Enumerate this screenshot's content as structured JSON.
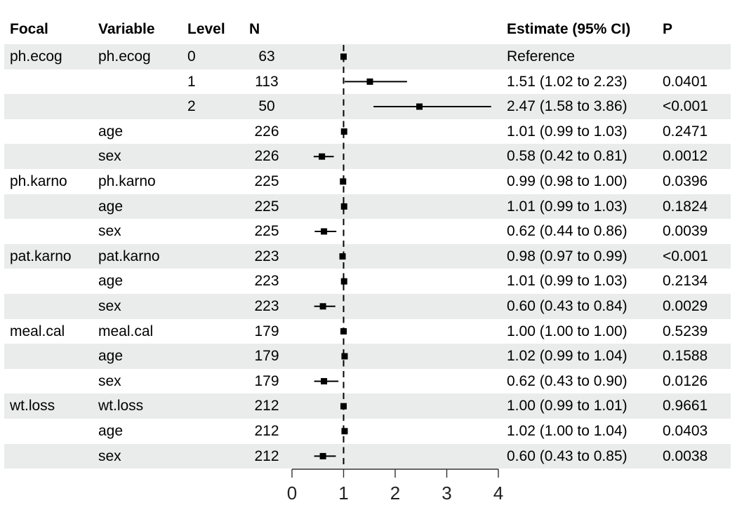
{
  "header": {
    "focal": "Focal",
    "variable": "Variable",
    "level": "Level",
    "n": "N",
    "estimate": "Estimate (95% CI)",
    "p": "P"
  },
  "colors": {
    "stripe": "#E9ECEA",
    "marker": "#000000",
    "axis": "#333333",
    "reference_line": "#000000"
  },
  "chart_data": {
    "type": "forest",
    "x_axis": {
      "ticks": [
        "0",
        "1",
        "2",
        "3",
        "4"
      ],
      "tick_values": [
        0,
        1,
        2,
        3,
        4
      ],
      "range": [
        0,
        4
      ]
    },
    "reference_line_x": 1,
    "grid": false,
    "legend": "none",
    "rows": [
      {
        "focal": "ph.ecog",
        "variable": "ph.ecog",
        "level": "0",
        "n": "63",
        "estimate": 1.0,
        "ci_low": null,
        "ci_high": null,
        "estimate_label": "Reference",
        "p": ""
      },
      {
        "focal": "",
        "variable": "",
        "level": "1",
        "n": "113",
        "estimate": 1.51,
        "ci_low": 1.02,
        "ci_high": 2.23,
        "estimate_label": "1.51 (1.02 to 2.23)",
        "p": "0.0401"
      },
      {
        "focal": "",
        "variable": "",
        "level": "2",
        "n": "50",
        "estimate": 2.47,
        "ci_low": 1.58,
        "ci_high": 3.86,
        "estimate_label": "2.47 (1.58 to 3.86)",
        "p": "<0.001"
      },
      {
        "focal": "",
        "variable": "age",
        "level": "",
        "n": "226",
        "estimate": 1.01,
        "ci_low": 0.99,
        "ci_high": 1.03,
        "estimate_label": "1.01 (0.99 to 1.03)",
        "p": "0.2471"
      },
      {
        "focal": "",
        "variable": "sex",
        "level": "",
        "n": "226",
        "estimate": 0.58,
        "ci_low": 0.42,
        "ci_high": 0.81,
        "estimate_label": "0.58 (0.42 to 0.81)",
        "p": "0.0012"
      },
      {
        "focal": "ph.karno",
        "variable": "ph.karno",
        "level": "",
        "n": "225",
        "estimate": 0.99,
        "ci_low": 0.98,
        "ci_high": 1.0,
        "estimate_label": "0.99 (0.98 to 1.00)",
        "p": "0.0396"
      },
      {
        "focal": "",
        "variable": "age",
        "level": "",
        "n": "225",
        "estimate": 1.01,
        "ci_low": 0.99,
        "ci_high": 1.03,
        "estimate_label": "1.01 (0.99 to 1.03)",
        "p": "0.1824"
      },
      {
        "focal": "",
        "variable": "sex",
        "level": "",
        "n": "225",
        "estimate": 0.62,
        "ci_low": 0.44,
        "ci_high": 0.86,
        "estimate_label": "0.62 (0.44 to 0.86)",
        "p": "0.0039"
      },
      {
        "focal": "pat.karno",
        "variable": "pat.karno",
        "level": "",
        "n": "223",
        "estimate": 0.98,
        "ci_low": 0.97,
        "ci_high": 0.99,
        "estimate_label": "0.98 (0.97 to 0.99)",
        "p": "<0.001"
      },
      {
        "focal": "",
        "variable": "age",
        "level": "",
        "n": "223",
        "estimate": 1.01,
        "ci_low": 0.99,
        "ci_high": 1.03,
        "estimate_label": "1.01 (0.99 to 1.03)",
        "p": "0.2134"
      },
      {
        "focal": "",
        "variable": "sex",
        "level": "",
        "n": "223",
        "estimate": 0.6,
        "ci_low": 0.43,
        "ci_high": 0.84,
        "estimate_label": "0.60 (0.43 to 0.84)",
        "p": "0.0029"
      },
      {
        "focal": "meal.cal",
        "variable": "meal.cal",
        "level": "",
        "n": "179",
        "estimate": 1.0,
        "ci_low": 1.0,
        "ci_high": 1.0,
        "estimate_label": "1.00 (1.00 to 1.00)",
        "p": "0.5239"
      },
      {
        "focal": "",
        "variable": "age",
        "level": "",
        "n": "179",
        "estimate": 1.02,
        "ci_low": 0.99,
        "ci_high": 1.04,
        "estimate_label": "1.02 (0.99 to 1.04)",
        "p": "0.1588"
      },
      {
        "focal": "",
        "variable": "sex",
        "level": "",
        "n": "179",
        "estimate": 0.62,
        "ci_low": 0.43,
        "ci_high": 0.9,
        "estimate_label": "0.62 (0.43 to 0.90)",
        "p": "0.0126"
      },
      {
        "focal": "wt.loss",
        "variable": "wt.loss",
        "level": "",
        "n": "212",
        "estimate": 1.0,
        "ci_low": 0.99,
        "ci_high": 1.01,
        "estimate_label": "1.00 (0.99 to 1.01)",
        "p": "0.9661"
      },
      {
        "focal": "",
        "variable": "age",
        "level": "",
        "n": "212",
        "estimate": 1.02,
        "ci_low": 1.0,
        "ci_high": 1.04,
        "estimate_label": "1.02 (1.00 to 1.04)",
        "p": "0.0403"
      },
      {
        "focal": "",
        "variable": "sex",
        "level": "",
        "n": "212",
        "estimate": 0.6,
        "ci_low": 0.43,
        "ci_high": 0.85,
        "estimate_label": "0.60 (0.43 to 0.85)",
        "p": "0.0038"
      }
    ]
  }
}
